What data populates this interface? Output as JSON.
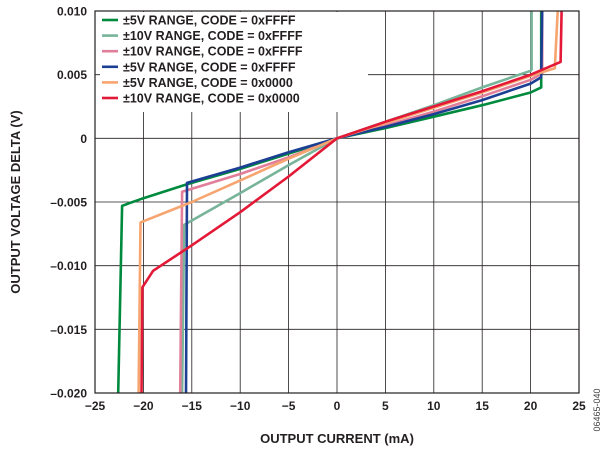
{
  "figure_id": "06465-040",
  "chart_data": {
    "type": "line",
    "xlabel": "OUTPUT CURRENT (mA)",
    "ylabel": "OUTPUT VOLTAGE DELTA (V)",
    "xlim": [
      -25,
      25
    ],
    "ylim": [
      -0.02,
      0.01
    ],
    "x_ticks": [
      -25,
      -20,
      -15,
      -10,
      -5,
      0,
      5,
      10,
      15,
      20,
      25
    ],
    "x_tick_labels": [
      "−25",
      "−20",
      "−15",
      "−10",
      "−5",
      "0",
      "5",
      "10",
      "15",
      "20",
      "25"
    ],
    "y_ticks": [
      0.01,
      0.005,
      0,
      -0.005,
      -0.01,
      -0.015,
      -0.02
    ],
    "y_tick_labels": [
      "0.010",
      "0.005",
      "0",
      "–0.005",
      "–0.010",
      "–0.015",
      "–0.020"
    ],
    "grid": true,
    "legend_position": "top-left",
    "series": [
      {
        "name": "±5V RANGE, CODE = 0xFFFF",
        "color": "#008a3e",
        "points": [
          [
            -22.6,
            -0.02
          ],
          [
            -22.2,
            -0.0053
          ],
          [
            -20,
            -0.0047
          ],
          [
            -15.5,
            -0.0036
          ],
          [
            -10,
            -0.0024
          ],
          [
            -5,
            -0.0012
          ],
          [
            0,
            0
          ],
          [
            5,
            0.0008
          ],
          [
            10,
            0.0017
          ],
          [
            15,
            0.0026
          ],
          [
            20,
            0.0036
          ],
          [
            21.1,
            0.004
          ],
          [
            21.1,
            0.01
          ]
        ]
      },
      {
        "name": "±10V RANGE, CODE = 0xFFFF",
        "color": "#78b49a",
        "points": [
          [
            -16.0,
            -0.02
          ],
          [
            -15.8,
            -0.0068
          ],
          [
            -10,
            -0.0043
          ],
          [
            -5,
            -0.0021
          ],
          [
            0,
            0
          ],
          [
            5,
            0.0013
          ],
          [
            10,
            0.0026
          ],
          [
            15,
            0.004
          ],
          [
            20,
            0.0053
          ],
          [
            20.1,
            0.0054
          ],
          [
            20.1,
            0.01
          ]
        ]
      },
      {
        "name": "±10V RANGE, CODE = 0xFFFF",
        "color": "#e17f9a",
        "points": [
          [
            -16.2,
            -0.02
          ],
          [
            -16.0,
            -0.0042
          ],
          [
            -10,
            -0.0028
          ],
          [
            -5,
            -0.0015
          ],
          [
            0,
            0
          ],
          [
            5,
            0.001
          ],
          [
            10,
            0.0021
          ],
          [
            15,
            0.0033
          ],
          [
            20,
            0.0046
          ],
          [
            21.2,
            0.0051
          ],
          [
            21.2,
            0.01
          ]
        ]
      },
      {
        "name": "±5V RANGE, CODE = 0xFFFF",
        "color": "#1c3f94",
        "points": [
          [
            -15.6,
            -0.02
          ],
          [
            -15.5,
            -0.0035
          ],
          [
            -10,
            -0.0023
          ],
          [
            -5,
            -0.0011
          ],
          [
            0,
            0
          ],
          [
            5,
            0.0009
          ],
          [
            10,
            0.0019
          ],
          [
            15,
            0.003
          ],
          [
            20,
            0.0043
          ],
          [
            21.1,
            0.0048
          ],
          [
            21.2,
            0.01
          ]
        ]
      },
      {
        "name": "±5V RANGE, CODE = 0x0000",
        "color": "#f7a570",
        "points": [
          [
            -20.5,
            -0.02
          ],
          [
            -20.3,
            -0.0066
          ],
          [
            -15,
            -0.005
          ],
          [
            -10,
            -0.0033
          ],
          [
            -5,
            -0.0016
          ],
          [
            0,
            0
          ],
          [
            5,
            0.0012
          ],
          [
            10,
            0.0024
          ],
          [
            15,
            0.0036
          ],
          [
            20,
            0.0049
          ],
          [
            22.5,
            0.0055
          ],
          [
            22.8,
            0.01
          ]
        ]
      },
      {
        "name": "±10V RANGE, CODE = 0x0000",
        "color": "#e31937",
        "points": [
          [
            -20.2,
            -0.02
          ],
          [
            -20.1,
            -0.0117
          ],
          [
            -19,
            -0.0104
          ],
          [
            -15,
            -0.0084
          ],
          [
            -10,
            -0.0058
          ],
          [
            -5,
            -0.003
          ],
          [
            0,
            0
          ],
          [
            5,
            0.0013
          ],
          [
            10,
            0.0025
          ],
          [
            15,
            0.0037
          ],
          [
            20,
            0.005
          ],
          [
            23.1,
            0.006
          ],
          [
            23.2,
            0.01
          ]
        ]
      }
    ]
  }
}
